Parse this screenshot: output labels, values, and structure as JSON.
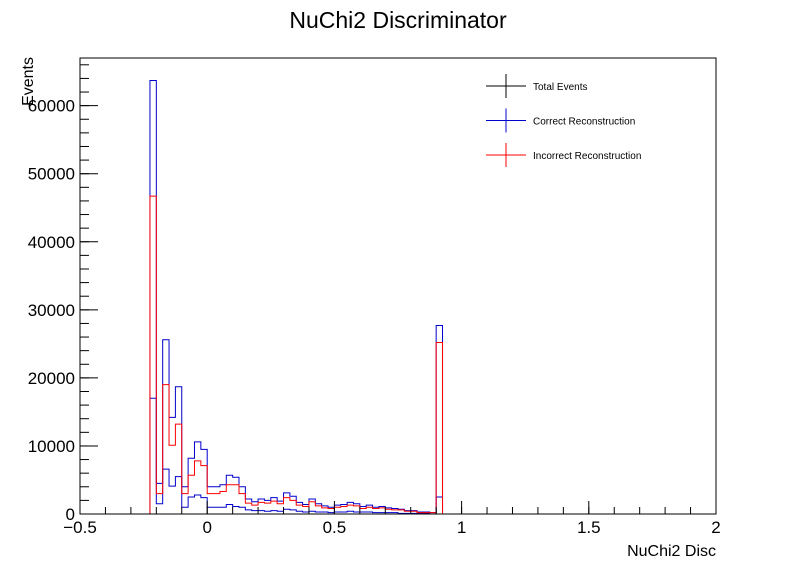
{
  "chart_data": {
    "type": "histogram",
    "title": "NuChi2 Discriminator",
    "xlabel": "NuChi2 Disc",
    "ylabel": "Events",
    "xlim": [
      -0.5,
      2.0
    ],
    "ylim": [
      0,
      67000
    ],
    "x_ticks": [
      -0.5,
      0,
      0.5,
      1,
      1.5,
      2
    ],
    "x_tick_labels": [
      "−0.5",
      "0",
      "0.5",
      "1",
      "1.5",
      "2"
    ],
    "y_ticks": [
      0,
      10000,
      20000,
      30000,
      40000,
      50000,
      60000
    ],
    "y_tick_labels": [
      "0",
      "10000",
      "20000",
      "30000",
      "40000",
      "50000",
      "60000"
    ],
    "bin_edges_range": [
      -0.5,
      2.0
    ],
    "bin_width": 0.025,
    "legend_position": "top-right",
    "series": [
      {
        "name": "Total Events",
        "color": "#0000cc",
        "bins": [
          {
            "x": -0.225,
            "y": 63700
          },
          {
            "x": -0.2,
            "y": 4500
          },
          {
            "x": -0.175,
            "y": 25600
          },
          {
            "x": -0.15,
            "y": 14200
          },
          {
            "x": -0.125,
            "y": 18700
          },
          {
            "x": -0.1,
            "y": 4000
          },
          {
            "x": -0.075,
            "y": 8200
          },
          {
            "x": -0.05,
            "y": 10600
          },
          {
            "x": -0.025,
            "y": 9500
          },
          {
            "x": 0.0,
            "y": 4000
          },
          {
            "x": 0.025,
            "y": 4000
          },
          {
            "x": 0.05,
            "y": 4300
          },
          {
            "x": 0.075,
            "y": 5700
          },
          {
            "x": 0.1,
            "y": 5400
          },
          {
            "x": 0.125,
            "y": 4000
          },
          {
            "x": 0.15,
            "y": 2200
          },
          {
            "x": 0.175,
            "y": 1800
          },
          {
            "x": 0.2,
            "y": 2200
          },
          {
            "x": 0.225,
            "y": 2000
          },
          {
            "x": 0.25,
            "y": 2400
          },
          {
            "x": 0.275,
            "y": 1900
          },
          {
            "x": 0.3,
            "y": 3100
          },
          {
            "x": 0.325,
            "y": 2600
          },
          {
            "x": 0.35,
            "y": 1700
          },
          {
            "x": 0.375,
            "y": 1400
          },
          {
            "x": 0.4,
            "y": 2200
          },
          {
            "x": 0.425,
            "y": 1500
          },
          {
            "x": 0.45,
            "y": 1200
          },
          {
            "x": 0.475,
            "y": 1000
          },
          {
            "x": 0.5,
            "y": 1300
          },
          {
            "x": 0.525,
            "y": 1400
          },
          {
            "x": 0.55,
            "y": 1700
          },
          {
            "x": 0.575,
            "y": 1500
          },
          {
            "x": 0.6,
            "y": 1100
          },
          {
            "x": 0.625,
            "y": 1300
          },
          {
            "x": 0.65,
            "y": 1000
          },
          {
            "x": 0.675,
            "y": 1100
          },
          {
            "x": 0.7,
            "y": 900
          },
          {
            "x": 0.725,
            "y": 800
          },
          {
            "x": 0.75,
            "y": 700
          },
          {
            "x": 0.775,
            "y": 500
          },
          {
            "x": 0.8,
            "y": 500
          },
          {
            "x": 0.825,
            "y": 300
          },
          {
            "x": 0.85,
            "y": 300
          },
          {
            "x": 0.875,
            "y": 200
          },
          {
            "x": 0.9,
            "y": 27700
          },
          {
            "x": 0.925,
            "y": 0
          }
        ]
      },
      {
        "name": "Correct Reconstruction",
        "color": "#0000cc",
        "bins": [
          {
            "x": -0.225,
            "y": 17000
          },
          {
            "x": -0.2,
            "y": 1500
          },
          {
            "x": -0.175,
            "y": 6600
          },
          {
            "x": -0.15,
            "y": 4100
          },
          {
            "x": -0.125,
            "y": 5500
          },
          {
            "x": -0.1,
            "y": 1000
          },
          {
            "x": -0.075,
            "y": 2500
          },
          {
            "x": -0.05,
            "y": 2800
          },
          {
            "x": -0.025,
            "y": 2400
          },
          {
            "x": 0.0,
            "y": 1000
          },
          {
            "x": 0.025,
            "y": 1000
          },
          {
            "x": 0.05,
            "y": 1000
          },
          {
            "x": 0.075,
            "y": 1400
          },
          {
            "x": 0.1,
            "y": 1100
          },
          {
            "x": 0.125,
            "y": 1000
          },
          {
            "x": 0.15,
            "y": 600
          },
          {
            "x": 0.175,
            "y": 500
          },
          {
            "x": 0.2,
            "y": 500
          },
          {
            "x": 0.225,
            "y": 400
          },
          {
            "x": 0.25,
            "y": 500
          },
          {
            "x": 0.275,
            "y": 400
          },
          {
            "x": 0.3,
            "y": 700
          },
          {
            "x": 0.325,
            "y": 600
          },
          {
            "x": 0.35,
            "y": 400
          },
          {
            "x": 0.375,
            "y": 300
          },
          {
            "x": 0.4,
            "y": 400
          },
          {
            "x": 0.425,
            "y": 300
          },
          {
            "x": 0.45,
            "y": 300
          },
          {
            "x": 0.475,
            "y": 200
          },
          {
            "x": 0.5,
            "y": 300
          },
          {
            "x": 0.525,
            "y": 300
          },
          {
            "x": 0.55,
            "y": 400
          },
          {
            "x": 0.575,
            "y": 300
          },
          {
            "x": 0.6,
            "y": 300
          },
          {
            "x": 0.625,
            "y": 300
          },
          {
            "x": 0.65,
            "y": 200
          },
          {
            "x": 0.675,
            "y": 200
          },
          {
            "x": 0.7,
            "y": 200
          },
          {
            "x": 0.725,
            "y": 200
          },
          {
            "x": 0.75,
            "y": 100
          },
          {
            "x": 0.775,
            "y": 100
          },
          {
            "x": 0.8,
            "y": 100
          },
          {
            "x": 0.825,
            "y": 100
          },
          {
            "x": 0.85,
            "y": 100
          },
          {
            "x": 0.875,
            "y": 0
          },
          {
            "x": 0.9,
            "y": 2500
          },
          {
            "x": 0.925,
            "y": 0
          }
        ]
      },
      {
        "name": "Incorrect Reconstruction",
        "color": "#ff0000",
        "bins": [
          {
            "x": -0.225,
            "y": 46700
          },
          {
            "x": -0.2,
            "y": 3000
          },
          {
            "x": -0.175,
            "y": 19000
          },
          {
            "x": -0.15,
            "y": 10100
          },
          {
            "x": -0.125,
            "y": 13200
          },
          {
            "x": -0.1,
            "y": 3000
          },
          {
            "x": -0.075,
            "y": 5700
          },
          {
            "x": -0.05,
            "y": 7800
          },
          {
            "x": -0.025,
            "y": 7100
          },
          {
            "x": 0.0,
            "y": 3000
          },
          {
            "x": 0.025,
            "y": 3000
          },
          {
            "x": 0.05,
            "y": 3300
          },
          {
            "x": 0.075,
            "y": 4300
          },
          {
            "x": 0.1,
            "y": 4300
          },
          {
            "x": 0.125,
            "y": 3000
          },
          {
            "x": 0.15,
            "y": 1600
          },
          {
            "x": 0.175,
            "y": 1300
          },
          {
            "x": 0.2,
            "y": 1700
          },
          {
            "x": 0.225,
            "y": 1600
          },
          {
            "x": 0.25,
            "y": 1900
          },
          {
            "x": 0.275,
            "y": 1500
          },
          {
            "x": 0.3,
            "y": 2400
          },
          {
            "x": 0.325,
            "y": 2000
          },
          {
            "x": 0.35,
            "y": 1300
          },
          {
            "x": 0.375,
            "y": 1100
          },
          {
            "x": 0.4,
            "y": 1800
          },
          {
            "x": 0.425,
            "y": 1200
          },
          {
            "x": 0.45,
            "y": 900
          },
          {
            "x": 0.475,
            "y": 800
          },
          {
            "x": 0.5,
            "y": 1000
          },
          {
            "x": 0.525,
            "y": 1100
          },
          {
            "x": 0.55,
            "y": 1300
          },
          {
            "x": 0.575,
            "y": 1200
          },
          {
            "x": 0.6,
            "y": 800
          },
          {
            "x": 0.625,
            "y": 1000
          },
          {
            "x": 0.65,
            "y": 800
          },
          {
            "x": 0.675,
            "y": 900
          },
          {
            "x": 0.7,
            "y": 700
          },
          {
            "x": 0.725,
            "y": 600
          },
          {
            "x": 0.75,
            "y": 600
          },
          {
            "x": 0.775,
            "y": 400
          },
          {
            "x": 0.8,
            "y": 400
          },
          {
            "x": 0.825,
            "y": 200
          },
          {
            "x": 0.85,
            "y": 200
          },
          {
            "x": 0.875,
            "y": 200
          },
          {
            "x": 0.9,
            "y": 25200
          },
          {
            "x": 0.925,
            "y": 0
          }
        ]
      }
    ]
  }
}
